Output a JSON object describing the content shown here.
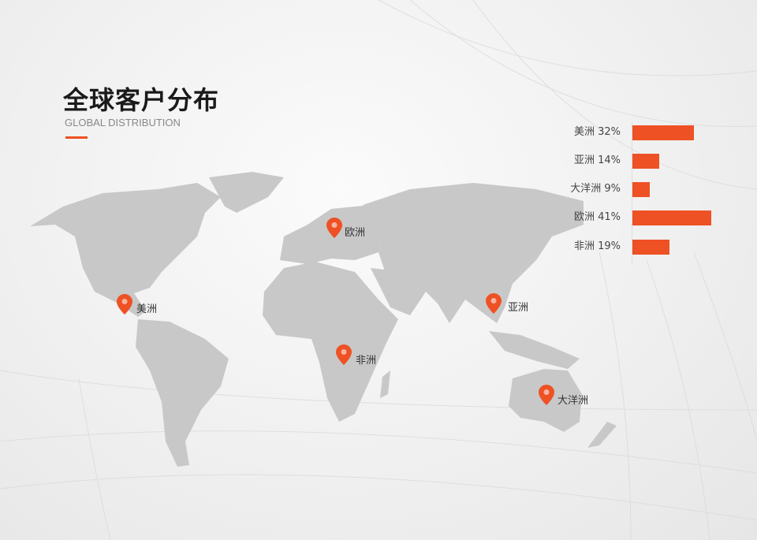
{
  "header": {
    "title": "全球客户分布",
    "subtitle": "GLOBAL DISTRIBUTION"
  },
  "colors": {
    "accent": "#ee5124",
    "land": "#c8c8c8"
  },
  "map": {
    "markers": [
      {
        "label": "美洲",
        "icon": "map-pin-icon"
      },
      {
        "label": "欧洲",
        "icon": "map-pin-icon"
      },
      {
        "label": "非洲",
        "icon": "map-pin-icon"
      },
      {
        "label": "亚洲",
        "icon": "map-pin-icon"
      },
      {
        "label": "大洋洲",
        "icon": "map-pin-icon"
      }
    ]
  },
  "chart_data": {
    "type": "bar",
    "orientation": "horizontal",
    "categories": [
      "美洲",
      "亚洲",
      "大洋洲",
      "欧洲",
      "非洲"
    ],
    "values": [
      32,
      14,
      9,
      41,
      19
    ],
    "labels": [
      "美洲 32%",
      "亚洲 14%",
      "大洋洲 9%",
      "欧洲 41%",
      "非洲 19%"
    ],
    "unit": "%",
    "color": "#ee5124"
  }
}
